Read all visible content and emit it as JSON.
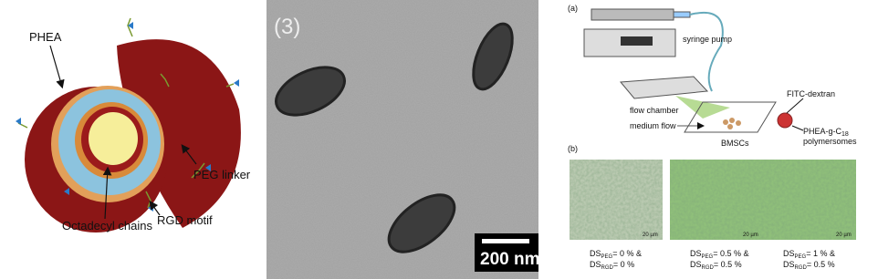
{
  "panel_left": {
    "labels": [
      "PHEA",
      "PEG linker",
      "Octadecyl chains",
      "RGD motif"
    ]
  },
  "panel_middle": {
    "label": "(3)",
    "scale_bar": "200 nm"
  },
  "panel_right": {
    "part_a": {
      "label": "(a)",
      "syringe_pump": "syringe pump",
      "flow_chamber": "flow chamber",
      "medium_flow": "medium flow",
      "cells": "BMSCs",
      "dextran": "FITC-dextran",
      "polymersome_name": {
        "text": "PHEA-g-C",
        "sub": "18"
      },
      "polymersome_label": "polymersomes"
    },
    "part_b": {
      "label": "(b)",
      "images": [
        {
          "scale": "20 µm",
          "ds_peg": {
            "base": "DS",
            "sub": "PEG",
            "rest": "= 0 % &"
          },
          "ds_rgd": {
            "base": "DS",
            "sub": "RGD",
            "rest": "= 0 %"
          }
        },
        {
          "scale": "20 µm",
          "ds_peg": {
            "base": "DS",
            "sub": "PEG",
            "rest": "= 0.5 % &"
          },
          "ds_rgd": {
            "base": "DS",
            "sub": "RGD",
            "rest": "= 0.5 %"
          }
        },
        {
          "scale": "20 µm",
          "ds_peg": {
            "base": "DS",
            "sub": "PEG",
            "rest": "= 1 % &"
          },
          "ds_rgd": {
            "base": "DS",
            "sub": "RGD",
            "rest": "= 0.5 %"
          }
        }
      ]
    }
  }
}
